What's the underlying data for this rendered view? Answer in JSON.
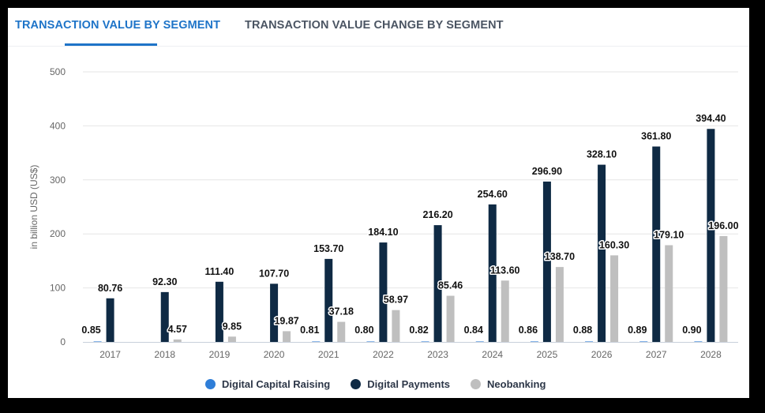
{
  "tabs": {
    "active_label": "TRANSACTION VALUE BY SEGMENT",
    "inactive_label": "TRANSACTION VALUE CHANGE BY SEGMENT"
  },
  "colors": {
    "accent": "#1e74c8",
    "digital_capital_raising": "#2f7ed8",
    "digital_payments": "#0f2a44",
    "neobanking": "#bfbfbf"
  },
  "chart_data": {
    "type": "bar",
    "title": "",
    "xlabel": "",
    "ylabel": "in billion USD (US$)",
    "ylim": [
      0,
      500
    ],
    "yticks": [
      0,
      100,
      200,
      300,
      400,
      500
    ],
    "categories": [
      "2017",
      "2018",
      "2019",
      "2020",
      "2021",
      "2022",
      "2023",
      "2024",
      "2025",
      "2026",
      "2027",
      "2028"
    ],
    "series": [
      {
        "name": "Digital Capital Raising",
        "values": [
          0.85,
          null,
          null,
          null,
          0.81,
          0.8,
          0.82,
          0.84,
          0.86,
          0.88,
          0.89,
          0.9
        ],
        "labels": [
          "0.85",
          "",
          "",
          "",
          "0.81",
          "0.80",
          "0.82",
          "0.84",
          "0.86",
          "0.88",
          "0.89",
          "0.90"
        ]
      },
      {
        "name": "Digital Payments",
        "values": [
          80.76,
          92.3,
          111.4,
          107.7,
          153.7,
          184.1,
          216.2,
          254.6,
          296.9,
          328.1,
          361.8,
          394.4
        ],
        "labels": [
          "80.76",
          "92.30",
          "111.40",
          "107.70",
          "153.70",
          "184.10",
          "216.20",
          "254.60",
          "296.90",
          "328.10",
          "361.80",
          "394.40"
        ]
      },
      {
        "name": "Neobanking",
        "values": [
          null,
          4.57,
          9.85,
          19.87,
          37.18,
          58.97,
          85.46,
          113.6,
          138.7,
          160.3,
          179.1,
          196.0
        ],
        "labels": [
          "",
          "4.57",
          "9.85",
          "19.87",
          "37.18",
          "58.97",
          "85.46",
          "113.60",
          "138.70",
          "160.30",
          "179.10",
          "196.00"
        ]
      }
    ]
  }
}
